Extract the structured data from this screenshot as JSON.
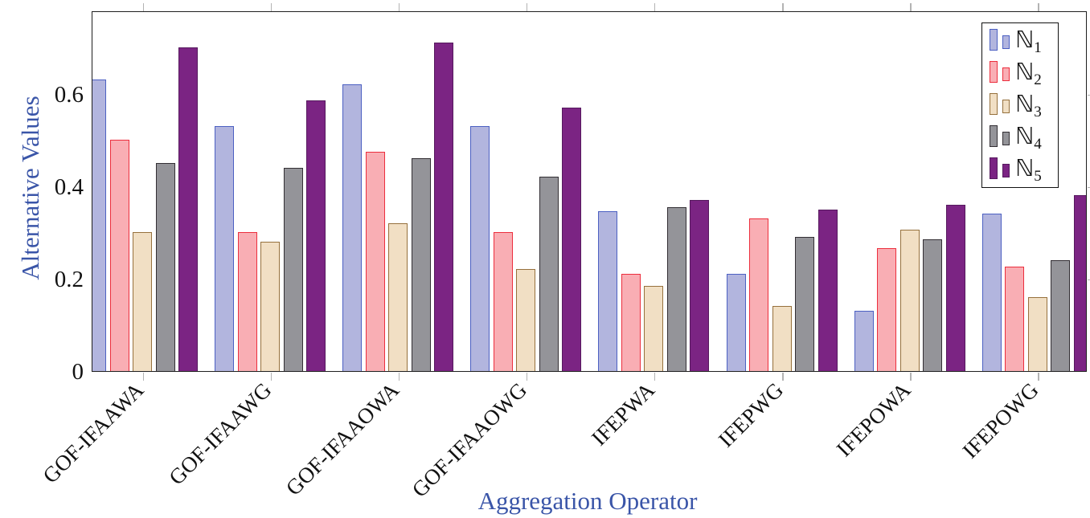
{
  "axis": {
    "ylabel": "Alternative Values",
    "xlabel": "Aggregation Operator",
    "label_color": "#3a55a8",
    "tick_color": "#b3b3b3",
    "frame_color": "#1f1f1f",
    "ytick_labels": [
      "0",
      "0.2",
      "0.4",
      "0.6"
    ]
  },
  "chart_data": {
    "type": "bar",
    "title": "",
    "xlabel": "Aggregation Operator",
    "ylabel": "Alternative Values",
    "ylim": [
      0,
      0.78
    ],
    "yticks": [
      0,
      0.2,
      0.4,
      0.6
    ],
    "grid": false,
    "legend_position": "top-right",
    "legend_symbol": "double-struck N with numeric subscript",
    "categories": [
      "GOF-IFAAWA",
      "GOF-IFAAWG",
      "GOF-IFAAOWA",
      "GOF-IFAAOWG",
      "IFEPWA",
      "IFEPWG",
      "IFEPOWA",
      "IFEPOWG"
    ],
    "series": [
      {
        "name": "N1",
        "label_base": "ℕ",
        "label_sub": "1",
        "fill": "#b2b5de",
        "stroke": "#4c60c2",
        "values": [
          0.63,
          0.53,
          0.62,
          0.53,
          0.345,
          0.21,
          0.13,
          0.34
        ]
      },
      {
        "name": "N2",
        "label_base": "ℕ",
        "label_sub": "2",
        "fill": "#f9aeb4",
        "stroke": "#ec2e3d",
        "values": [
          0.5,
          0.3,
          0.475,
          0.3,
          0.21,
          0.33,
          0.265,
          0.225
        ]
      },
      {
        "name": "N3",
        "label_base": "ℕ",
        "label_sub": "3",
        "fill": "#f1dfc4",
        "stroke": "#96713d",
        "values": [
          0.3,
          0.28,
          0.32,
          0.22,
          0.185,
          0.14,
          0.305,
          0.16
        ]
      },
      {
        "name": "N4",
        "label_base": "ℕ",
        "label_sub": "4",
        "fill": "#949499",
        "stroke": "#332f34",
        "values": [
          0.45,
          0.44,
          0.46,
          0.42,
          0.355,
          0.29,
          0.285,
          0.24
        ]
      },
      {
        "name": "N5",
        "label_base": "ℕ",
        "label_sub": "5",
        "fill": "#7b2483",
        "stroke": "#56195e",
        "values": [
          0.7,
          0.585,
          0.71,
          0.57,
          0.37,
          0.35,
          0.36,
          0.38
        ]
      }
    ]
  }
}
